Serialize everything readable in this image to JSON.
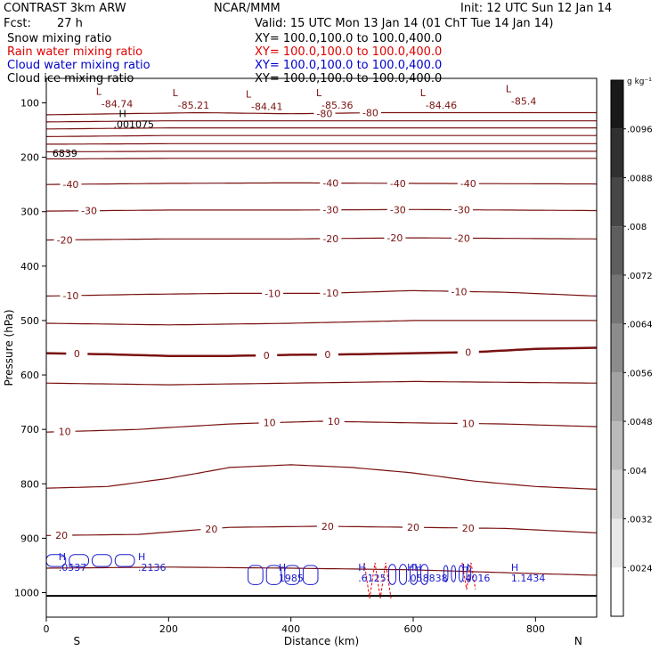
{
  "header": {
    "model": "CONTRAST  3km ARW",
    "center": "NCAR/MMM",
    "init": "Init: 12 UTC Sun 12 Jan 14",
    "fcst_label": "Fcst:",
    "fcst_value": "27 h",
    "valid": "Valid: 15 UTC Mon 13 Jan 14 (01 ChT Tue 14 Jan 14)"
  },
  "fields": [
    {
      "label": "Snow mixing ratio",
      "xy": "XY= 100.0,100.0 to 100.0,400.0",
      "color": "#000000"
    },
    {
      "label": "Rain water mixing ratio",
      "xy": "XY= 100.0,100.0 to 100.0,400.0",
      "color": "#e00000"
    },
    {
      "label": "Cloud water mixing ratio",
      "xy": "XY= 100.0,100.0 to 100.0,400.0",
      "color": "#0000cc"
    },
    {
      "label": "Cloud ice mixing ratio",
      "xy": "XY= 100.0,100.0 to 100.0,400.0",
      "color": "#000000"
    }
  ],
  "colors": {
    "contour": "#7a1010",
    "cloud": "#1a1acc",
    "rain": "#e00000",
    "axis": "#000000"
  },
  "chart_data": {
    "type": "contour",
    "xlabel": "Distance (km)",
    "ylabel": "Pressure (hPa)",
    "xlim": [
      0,
      900
    ],
    "ylim": [
      1045,
      55
    ],
    "xticks": [
      0,
      200,
      400,
      600,
      800
    ],
    "yticks": [
      100,
      200,
      300,
      400,
      500,
      600,
      700,
      800,
      900,
      1000
    ],
    "x_end_labels": {
      "left": "S",
      "right": "N"
    },
    "colorbar": {
      "unit": "g kg⁻¹",
      "ticks": [
        ".0096",
        ".0088",
        ".008",
        ".0072",
        ".0064",
        ".0056",
        ".0048",
        ".004",
        ".0032",
        ".0024"
      ],
      "tick_values": [
        0.0096,
        0.0088,
        0.008,
        0.0072,
        0.0064,
        0.0056,
        0.0048,
        0.004,
        0.0032,
        0.0024
      ],
      "range": [
        0.0016,
        0.0104
      ]
    },
    "temperature_contours": [
      {
        "label": "-80",
        "x": [
          0,
          120,
          250,
          400,
          550,
          700,
          900
        ],
        "p": [
          122,
          120,
          118,
          120,
          118,
          118,
          118
        ],
        "labels": [
          [
            455,
            -80
          ],
          [
            530,
            -80
          ]
        ]
      },
      {
        "label": "",
        "x": [
          0,
          200,
          400,
          600,
          900
        ],
        "p": [
          135,
          133,
          133,
          133,
          133
        ],
        "labels": []
      },
      {
        "label": "",
        "x": [
          0,
          200,
          400,
          600,
          900
        ],
        "p": [
          148,
          146,
          146,
          146,
          146
        ],
        "labels": []
      },
      {
        "label": "",
        "x": [
          0,
          200,
          400,
          600,
          900
        ],
        "p": [
          162,
          160,
          160,
          160,
          160
        ],
        "labels": []
      },
      {
        "label": "",
        "x": [
          0,
          200,
          400,
          600,
          900
        ],
        "p": [
          176,
          175,
          175,
          175,
          175
        ],
        "labels": []
      },
      {
        "label": "",
        "x": [
          0,
          200,
          400,
          600,
          900
        ],
        "p": [
          190,
          189,
          189,
          189,
          189
        ],
        "labels": []
      },
      {
        "label": "",
        "x": [
          0,
          200,
          400,
          600,
          900
        ],
        "p": [
          203,
          202,
          202,
          202,
          202
        ],
        "labels": []
      },
      {
        "label": "-40",
        "x": [
          0,
          200,
          400,
          600,
          900
        ],
        "p": [
          250,
          248,
          247,
          248,
          249
        ],
        "labels": [
          [
            40,
            -40
          ],
          [
            465,
            -40
          ],
          [
            575,
            -40
          ],
          [
            690,
            -40
          ]
        ]
      },
      {
        "label": "-30",
        "x": [
          0,
          200,
          400,
          600,
          900
        ],
        "p": [
          299,
          297,
          297,
          296,
          298
        ],
        "labels": [
          [
            70,
            -30
          ],
          [
            465,
            -30
          ],
          [
            575,
            -30
          ],
          [
            680,
            -30
          ]
        ]
      },
      {
        "label": "-20",
        "x": [
          0,
          200,
          400,
          600,
          900
        ],
        "p": [
          352,
          350,
          350,
          348,
          350
        ],
        "labels": [
          [
            30,
            -20
          ],
          [
            465,
            -20
          ],
          [
            570,
            -20
          ],
          [
            680,
            -20
          ]
        ]
      },
      {
        "label": "-10",
        "x": [
          0,
          150,
          300,
          450,
          600,
          750,
          900
        ],
        "p": [
          455,
          452,
          450,
          450,
          445,
          448,
          455
        ],
        "labels": [
          [
            40,
            -10
          ],
          [
            370,
            -10
          ],
          [
            465,
            -10
          ],
          [
            675,
            -10
          ]
        ]
      },
      {
        "label": "",
        "x": [
          0,
          200,
          400,
          600,
          900
        ],
        "p": [
          505,
          508,
          505,
          500,
          500
        ],
        "labels": []
      },
      {
        "label": "0",
        "x": [
          0,
          100,
          200,
          300,
          400,
          500,
          600,
          700,
          800,
          900
        ],
        "p": [
          560,
          562,
          565,
          565,
          563,
          562,
          560,
          558,
          552,
          550
        ],
        "labels": [
          [
            50,
            0
          ],
          [
            360,
            0
          ],
          [
            460,
            0
          ],
          [
            690,
            0
          ]
        ]
      },
      {
        "label": "",
        "x": [
          0,
          200,
          400,
          600,
          900
        ],
        "p": [
          615,
          618,
          615,
          612,
          615
        ],
        "labels": []
      },
      {
        "label": "10",
        "x": [
          0,
          150,
          300,
          450,
          600,
          750,
          900
        ],
        "p": [
          705,
          700,
          690,
          685,
          688,
          690,
          695
        ],
        "labels": [
          [
            30,
            10
          ],
          [
            365,
            10
          ],
          [
            470,
            10
          ],
          [
            690,
            10
          ]
        ]
      },
      {
        "label": "",
        "x": [
          0,
          100,
          200,
          300,
          400,
          500,
          600,
          700,
          800,
          900
        ],
        "p": [
          808,
          805,
          790,
          770,
          765,
          770,
          780,
          795,
          805,
          810
        ],
        "labels": []
      },
      {
        "label": "20",
        "x": [
          0,
          150,
          300,
          450,
          600,
          750,
          900
        ],
        "p": [
          895,
          893,
          880,
          878,
          880,
          882,
          890
        ],
        "labels": [
          [
            25,
            20
          ],
          [
            270,
            20
          ],
          [
            460,
            20
          ],
          [
            600,
            20
          ],
          [
            690,
            20
          ]
        ]
      },
      {
        "label": "",
        "x": [
          0,
          200,
          400,
          600,
          800,
          900
        ],
        "p": [
          955,
          953,
          955,
          958,
          965,
          968
        ],
        "labels": []
      }
    ],
    "terrain_p": 1006,
    "tropopause_annotations": [
      {
        "type": "L",
        "x": 90,
        "p": 85,
        "value": "-84.74"
      },
      {
        "type": "L",
        "x": 215,
        "p": 88,
        "value": "-85.21"
      },
      {
        "type": "L",
        "x": 335,
        "p": 90,
        "value": "-84.41"
      },
      {
        "type": "L",
        "x": 450,
        "p": 88,
        "value": "-85.36"
      },
      {
        "type": "L",
        "x": 620,
        "p": 88,
        "value": "-84.46"
      },
      {
        "type": "L",
        "x": 760,
        "p": 80,
        "value": "-85.4"
      }
    ],
    "ice_annotations": [
      {
        "type": "H",
        "x": 110,
        "p": 126,
        "value": ".001075"
      },
      {
        "type": "",
        "x": 10,
        "p": 179,
        "value": "6839"
      }
    ],
    "cloud_water_annotations": [
      {
        "type": "H",
        "x": 20,
        "p": 940,
        "value": ".0537"
      },
      {
        "type": "H",
        "x": 150,
        "p": 940,
        "value": ".2136"
      },
      {
        "type": "H",
        "x": 380,
        "p": 960,
        "value": "1985"
      },
      {
        "type": "H",
        "x": 510,
        "p": 960,
        "value": ".6125"
      },
      {
        "type": "HH",
        "x": 590,
        "p": 960,
        "value": ".058838"
      },
      {
        "type": "H",
        "x": 680,
        "p": 960,
        "value": ".4016"
      },
      {
        "type": "H",
        "x": 760,
        "p": 960,
        "value": "1.1434"
      }
    ]
  }
}
